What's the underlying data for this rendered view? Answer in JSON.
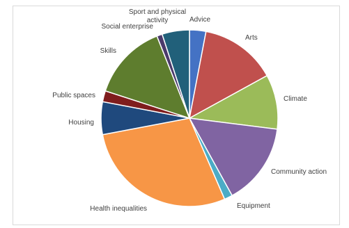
{
  "chart_data": {
    "type": "pie",
    "title": "",
    "start_angle_deg": 0,
    "direction": "clockwise",
    "slices": [
      {
        "label": "Advice",
        "value": 3,
        "color": "#4472C4"
      },
      {
        "label": "Arts",
        "value": 14,
        "color": "#C0504D"
      },
      {
        "label": "Climate",
        "value": 10,
        "color": "#9BBB59"
      },
      {
        "label": "Community action",
        "value": 15,
        "color": "#8064A2"
      },
      {
        "label": "Equipment",
        "value": 1.5,
        "color": "#4BACC6"
      },
      {
        "label": "Health inequalities",
        "value": 28.5,
        "color": "#F79646"
      },
      {
        "label": "Housing",
        "value": 6,
        "color": "#1F497D"
      },
      {
        "label": "Public spaces",
        "value": 2,
        "color": "#7F1D1D"
      },
      {
        "label": "Skills",
        "value": 14,
        "color": "#5E7D2E"
      },
      {
        "label": "Social enterprise",
        "value": 1,
        "color": "#4B3A6B"
      },
      {
        "label": "Sport and physical activity",
        "value": 5,
        "color": "#21607A"
      }
    ]
  }
}
